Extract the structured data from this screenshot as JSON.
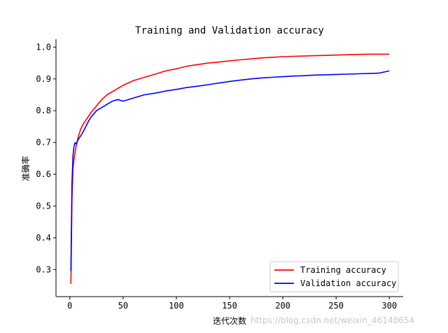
{
  "chart_data": {
    "type": "line",
    "title": "Training and Validation accuracy",
    "xlabel": "迭代次数",
    "ylabel": "准确率",
    "xlim": [
      -13,
      313
    ],
    "ylim": [
      0.215,
      1.025
    ],
    "xticks": [
      0,
      50,
      100,
      150,
      200,
      250,
      300
    ],
    "yticks": [
      0.3,
      0.4,
      0.5,
      0.6,
      0.7,
      0.8,
      0.9,
      1.0
    ],
    "grid": false,
    "legend_position": "bottom-right",
    "series": [
      {
        "name": "Training accuracy",
        "color": "#ff0000",
        "x": [
          1,
          2,
          3,
          4,
          5,
          6,
          8,
          10,
          12,
          15,
          18,
          20,
          25,
          30,
          35,
          40,
          45,
          50,
          60,
          70,
          80,
          90,
          100,
          110,
          120,
          130,
          140,
          150,
          160,
          170,
          180,
          190,
          200,
          210,
          220,
          230,
          240,
          250,
          260,
          270,
          280,
          290,
          300
        ],
        "y": [
          0.255,
          0.52,
          0.62,
          0.65,
          0.67,
          0.69,
          0.72,
          0.74,
          0.755,
          0.77,
          0.785,
          0.795,
          0.815,
          0.835,
          0.85,
          0.86,
          0.87,
          0.88,
          0.895,
          0.905,
          0.915,
          0.925,
          0.932,
          0.94,
          0.945,
          0.95,
          0.953,
          0.957,
          0.96,
          0.963,
          0.966,
          0.968,
          0.97,
          0.971,
          0.972,
          0.973,
          0.974,
          0.975,
          0.976,
          0.977,
          0.978,
          0.978,
          0.978
        ]
      },
      {
        "name": "Validation accuracy",
        "color": "#0000ff",
        "x": [
          1,
          2,
          3,
          4,
          5,
          6,
          8,
          10,
          12,
          15,
          18,
          20,
          25,
          30,
          35,
          40,
          45,
          50,
          60,
          70,
          80,
          90,
          100,
          110,
          120,
          130,
          140,
          150,
          160,
          170,
          180,
          190,
          200,
          210,
          220,
          230,
          240,
          250,
          260,
          270,
          280,
          290,
          300
        ],
        "y": [
          0.295,
          0.57,
          0.66,
          0.69,
          0.7,
          0.695,
          0.71,
          0.72,
          0.73,
          0.75,
          0.77,
          0.78,
          0.8,
          0.81,
          0.82,
          0.83,
          0.835,
          0.83,
          0.84,
          0.85,
          0.855,
          0.862,
          0.867,
          0.873,
          0.877,
          0.882,
          0.887,
          0.892,
          0.896,
          0.9,
          0.903,
          0.905,
          0.907,
          0.909,
          0.91,
          0.912,
          0.913,
          0.914,
          0.915,
          0.916,
          0.917,
          0.918,
          0.925
        ]
      }
    ]
  },
  "watermark": "https://blog.csdn.net/weixin_46148654"
}
